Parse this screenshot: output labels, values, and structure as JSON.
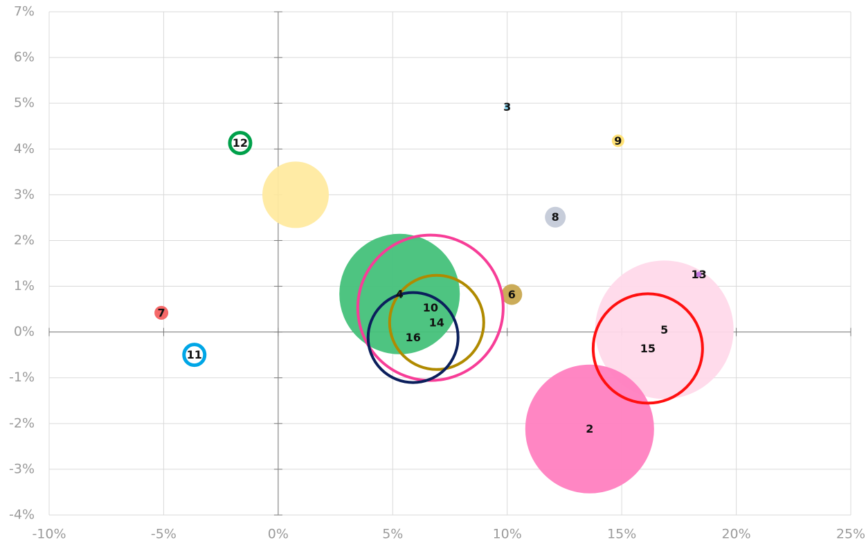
{
  "chart_data": {
    "type": "bubble",
    "xlim": [
      -10,
      25
    ],
    "ylim": [
      -4,
      7
    ],
    "xticks": [
      {
        "value": -10,
        "label": "-10%"
      },
      {
        "value": -5,
        "label": "-5%"
      },
      {
        "value": 0,
        "label": "0%"
      },
      {
        "value": 5,
        "label": "5%"
      },
      {
        "value": 10,
        "label": "10%"
      },
      {
        "value": 15,
        "label": "15%"
      },
      {
        "value": 20,
        "label": "20%"
      },
      {
        "value": 25,
        "label": "25%"
      }
    ],
    "yticks": [
      {
        "value": -4,
        "label": "-4%"
      },
      {
        "value": -3,
        "label": "-3%"
      },
      {
        "value": -2,
        "label": "-2%"
      },
      {
        "value": -1,
        "label": "-1%"
      },
      {
        "value": 0,
        "label": "0%"
      },
      {
        "value": 1,
        "label": "1%"
      },
      {
        "value": 2,
        "label": "2%"
      },
      {
        "value": 3,
        "label": "3%"
      },
      {
        "value": 4,
        "label": "4%"
      },
      {
        "value": 5,
        "label": "5%"
      },
      {
        "value": 6,
        "label": "6%"
      },
      {
        "value": 7,
        "label": "7%"
      }
    ],
    "grid": true,
    "series": [
      {
        "name": null,
        "color": "#ffeaa0",
        "filled": true,
        "x": [
          0.76
        ],
        "values": [
          3.0
        ],
        "sizes": [
          4.8
        ]
      },
      {
        "name": "5",
        "color": "#ffd9ea",
        "filled": true,
        "x": [
          16.86
        ],
        "values": [
          0.05
        ],
        "sizes": [
          10.0
        ]
      },
      {
        "name": "2",
        "color": "#ff80c0",
        "filled": true,
        "x": [
          13.6
        ],
        "values": [
          -2.12
        ],
        "sizes": [
          9.3
        ]
      },
      {
        "name": "3",
        "color": "#7fd3f0",
        "filled": true,
        "x": [
          10.0
        ],
        "values": [
          4.92
        ],
        "sizes": [
          0.4
        ]
      },
      {
        "name": "4",
        "color": "#44c17a",
        "filled": true,
        "x": [
          5.3
        ],
        "values": [
          0.83
        ],
        "sizes": [
          8.7
        ]
      },
      {
        "name": "6",
        "color": "#c8a850",
        "filled": true,
        "x": [
          10.2
        ],
        "values": [
          0.82
        ],
        "sizes": [
          1.5
        ]
      },
      {
        "name": "7",
        "color": "#f46060",
        "filled": true,
        "x": [
          -5.1
        ],
        "values": [
          0.42
        ],
        "sizes": [
          1.0
        ]
      },
      {
        "name": "8",
        "color": "#c4cad8",
        "filled": true,
        "x": [
          12.1
        ],
        "values": [
          2.51
        ],
        "sizes": [
          1.5
        ]
      },
      {
        "name": "9",
        "color": "#ffe070",
        "filled": true,
        "x": [
          14.84
        ],
        "values": [
          4.18
        ],
        "sizes": [
          0.9
        ]
      },
      {
        "name": "10",
        "color": "#f73d97",
        "filled": false,
        "x": [
          6.65
        ],
        "values": [
          0.53
        ],
        "sizes": [
          10.5
        ]
      },
      {
        "name": "11",
        "color": "#00a6e6",
        "filled": false,
        "x": [
          -3.66
        ],
        "values": [
          -0.5
        ],
        "sizes": [
          1.5
        ]
      },
      {
        "name": "12",
        "color": "#00a04a",
        "filled": false,
        "x": [
          -1.66
        ],
        "values": [
          4.13
        ],
        "sizes": [
          1.5
        ]
      },
      {
        "name": "13",
        "color": "#c070e0",
        "filled": true,
        "x": [
          18.37
        ],
        "values": [
          1.26
        ],
        "sizes": [
          0.4
        ]
      },
      {
        "name": "14",
        "color": "#b08a00",
        "filled": false,
        "x": [
          6.92
        ],
        "values": [
          0.21
        ],
        "sizes": [
          6.8
        ]
      },
      {
        "name": "15",
        "color": "#ff1010",
        "filled": false,
        "x": [
          16.14
        ],
        "values": [
          -0.36
        ],
        "sizes": [
          7.9
        ]
      },
      {
        "name": "16",
        "color": "#0b1f5c",
        "filled": false,
        "x": [
          5.89
        ],
        "values": [
          -0.12
        ],
        "sizes": [
          6.5
        ]
      }
    ]
  }
}
